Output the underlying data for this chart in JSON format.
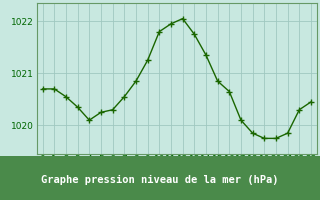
{
  "x": [
    0,
    1,
    2,
    3,
    4,
    5,
    6,
    7,
    8,
    9,
    10,
    11,
    12,
    13,
    14,
    15,
    16,
    17,
    18,
    19,
    20,
    21,
    22,
    23
  ],
  "y": [
    1020.7,
    1020.7,
    1020.55,
    1020.35,
    1020.1,
    1020.25,
    1020.3,
    1020.55,
    1020.85,
    1021.25,
    1021.8,
    1021.95,
    1022.05,
    1021.75,
    1021.35,
    1020.85,
    1020.65,
    1020.1,
    1019.85,
    1019.75,
    1019.75,
    1019.85,
    1020.3,
    1020.45
  ],
  "line_color": "#1a6600",
  "marker": "+",
  "marker_size": 4,
  "marker_linewidth": 1.0,
  "line_width": 1.0,
  "background_color": "#c8e8e0",
  "plot_bg_color": "#c8e8e0",
  "grid_color": "#a0c8c0",
  "ylabel_ticks": [
    1020,
    1021,
    1022
  ],
  "ylim": [
    1019.45,
    1022.35
  ],
  "xlim": [
    -0.5,
    23.5
  ],
  "xlabel": "Graphe pression niveau de la mer (hPa)",
  "xlabel_fontsize": 7.5,
  "tick_fontsize": 6.5,
  "ytick_fontsize": 6.5,
  "xlabel_color": "#006600",
  "tick_color": "#006600",
  "spine_color": "#669966",
  "bottom_bar_color": "#4a8a4a"
}
